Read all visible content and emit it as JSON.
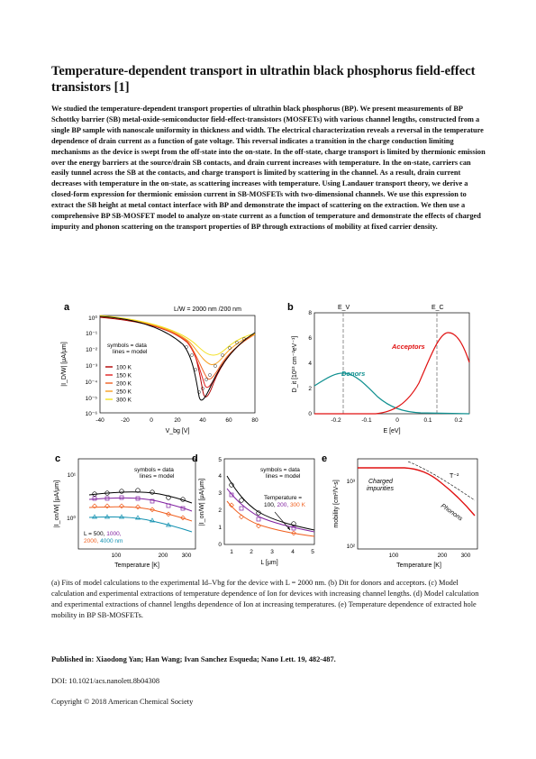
{
  "paper": {
    "title": "Temperature-dependent transport in ultrathin black phosphorus field-effect transistors [1]",
    "abstract": "We studied the temperature-dependent transport properties of ultrathin black phosphorus (BP). We present measurements of BP Schottky barrier (SB) metal-oxide-semiconductor field-effect-transistors (MOSFETs) with various channel lengths, constructed from a single BP sample with nanoscale uniformity in thickness and width. The electrical characterization reveals a reversal in the temperature dependence of drain current as a function of gate voltage. This reversal indicates a transition in the charge conduction limiting mechanisms as the device is swept from the off-state into the on-state. In the off-state, charge transport is limited by thermionic emission over the energy barriers at the source/drain SB contacts, and drain current increases with temperature. In the on-state, carriers can easily tunnel across the SB at the contacts, and charge transport is limited by scattering in the channel. As a result, drain current decreases with temperature in the on-state, as scattering increases with temperature. Using Landauer transport theory, we derive a closed-form expression for thermionic emission current in SB-MOSFETs with two-dimensional channels. We use this expression to extract the SB height at metal contact interface with BP and demonstrate the impact of scattering on the extraction. We then use a comprehensive BP SB-MOSFET model to analyze on-state current as a function of temperature and demonstrate the effects of charged impurity and phonon scattering on the transport properties of BP through extractions of mobility at fixed carrier density.",
    "caption": "(a) Fits of model calculations to the experimental Id–Vbg for the device with L = 2000 nm. (b) Dit for donors and acceptors. (c) Model calculation and experimental extractions of temperature dependence of Ion for devices with increasing channel lengths. (d) Model calculation and experimental extractions of channel lengths dependence of Ion at increasing temperatures. (e) Temperature dependence of extracted hole mobility in BP SB-MOSFETs.",
    "published": "Published in: Xiaodong Yan; Han Wang; Ivan Sanchez Esqueda; Nano Lett.  19, 482-487.",
    "doi": "DOI: 10.1021/acs.nanolett.8b04308",
    "copyright": "Copyright © 2018 American Chemical Society"
  },
  "figure": {
    "panel_a": {
      "letter": "a",
      "header": "L/W = 2000 nm /200 nm",
      "ylabel": "|I_D/W| [μA/μm]",
      "xlabel": "V_bg [V]",
      "note1": "symbols = data",
      "note2": "lines = model",
      "xticks": [
        "-40",
        "-20",
        "0",
        "20",
        "40",
        "60",
        "80"
      ],
      "yticks": [
        "10⁰",
        "10⁻¹",
        "10⁻²",
        "10⁻³",
        "10⁻⁴",
        "10⁻⁵",
        "10⁻⁶"
      ],
      "legend": [
        {
          "label": "100 K",
          "color": "#b00000"
        },
        {
          "label": "150 K",
          "color": "#e02020"
        },
        {
          "label": "200 K",
          "color": "#f06020"
        },
        {
          "label": "250 K",
          "color": "#f7a020"
        },
        {
          "label": "300 K",
          "color": "#f2e020"
        }
      ]
    },
    "panel_b": {
      "letter": "b",
      "ylabel": "D_it [10¹³ cm⁻²eV⁻¹]",
      "xlabel": "E [eV]",
      "ev_label": "E_V",
      "ec_label": "E_C",
      "acceptors": "Acceptors",
      "donors": "Donors",
      "xticks": [
        "-0.2",
        "-0.1",
        "0",
        "0.1",
        "0.2"
      ],
      "yticks": [
        "0",
        "2",
        "4",
        "6",
        "8"
      ],
      "acceptor_color": "#e01010",
      "donor_color": "#109090"
    },
    "panel_c": {
      "letter": "c",
      "ylabel": "|I_on/W| [μA/μm]",
      "xlabel": "Temperature [K]",
      "note1": "symbols = data",
      "note2": "lines = model",
      "l_prefix": "L = ",
      "l_500": "500,",
      "l_1000": "1000,",
      "l_2000": "2000,",
      "l_4000": "4000 nm",
      "xticks": [
        "100",
        "200",
        "300"
      ],
      "yticks": [
        "10¹",
        "10⁰"
      ]
    },
    "panel_d": {
      "letter": "d",
      "ylabel": "|I_on/W| [μA/μm]",
      "xlabel": "L [μm]",
      "note1": "symbols = data",
      "note2": "lines = model",
      "t_head": "Temperature =",
      "t_100": "100,",
      "t_200": "200,",
      "t_300": "300 K",
      "xticks": [
        "1",
        "2",
        "3",
        "4",
        "5"
      ],
      "yticks": [
        "0",
        "1",
        "2",
        "3",
        "4",
        "5"
      ]
    },
    "panel_e": {
      "letter": "e",
      "ylabel": "mobility [cm²/V-s]",
      "xlabel": "Temperature [K]",
      "charged1": "Charged",
      "charged2": "impurities",
      "phonons": "Phonons",
      "power": "T⁻²",
      "xticks": [
        "100",
        "200",
        "300"
      ],
      "yticks": [
        "10³",
        "10²"
      ]
    }
  }
}
